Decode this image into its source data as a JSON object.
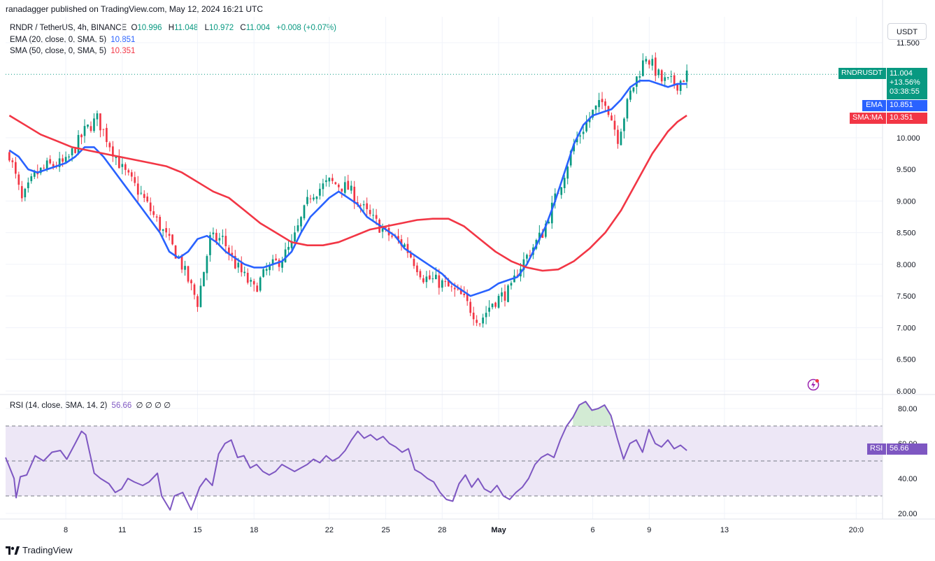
{
  "header": {
    "publisher_line": "ranadagger published on TradingView.com, May 12, 2024 16:21 UTC"
  },
  "legend": {
    "main": {
      "symbol": "RNDR / TetherUS, 4h, BINANCE",
      "o_label": "O",
      "o": "10.996",
      "h_label": "H",
      "h": "11.048",
      "l_label": "L",
      "l": "10.972",
      "c_label": "C",
      "c": "11.004",
      "change": "+0.008 (+0.07%)"
    },
    "ema": {
      "text": "EMA (20, close, 0, SMA, 5)",
      "value": "10.851"
    },
    "sma": {
      "text": "SMA (50, close, 0, SMA, 5)",
      "value": "10.351"
    },
    "rsi": {
      "text": "RSI (14, close, SMA, 14, 2)",
      "value": "56.66",
      "empties": "∅ ∅ ∅ ∅"
    }
  },
  "currency_button": "USDT",
  "price_labels": {
    "symbol_tag": "RNDRUSDT",
    "last_price": "11.004",
    "change_pct": "+13.56%",
    "countdown": "03:38:55",
    "ema_tag": "EMA",
    "ema_val": "10.851",
    "sma_tag": "SMA:MA",
    "sma_val": "10.351",
    "rsi_tag": "RSI",
    "rsi_val": "56.66"
  },
  "colors": {
    "up": "#089981",
    "down": "#f23645",
    "ema": "#2962ff",
    "sma": "#f23645",
    "rsi": "#7e57c2",
    "rsi_band": "#ede7f6",
    "overbought_fill": "#c8e6c9",
    "grid": "#f0f3fa",
    "axis_text": "#131722"
  },
  "footer": {
    "brand": "TradingView"
  },
  "chart_data": [
    {
      "type": "candlestick",
      "title": "RNDR / TetherUS, 4h, BINANCE",
      "ylim": [
        6.0,
        11.6
      ],
      "y_ticks": [
        "6.000",
        "6.500",
        "7.000",
        "7.500",
        "8.000",
        "8.500",
        "9.000",
        "9.500",
        "10.000",
        "11.500"
      ],
      "x_ticks": [
        "8",
        "11",
        "15",
        "18",
        "22",
        "25",
        "28",
        "May",
        "6",
        "9",
        "13",
        "20:0"
      ],
      "x_tick_day_index": [
        3,
        6,
        10,
        13,
        17,
        20,
        23,
        26,
        31,
        34,
        38,
        45
      ],
      "day_range": [
        -0.2,
        46.4
      ],
      "candles_per_day": 6,
      "candle_count": 190,
      "close_path": [
        [
          0,
          9.75
        ],
        [
          4,
          9.0
        ],
        [
          8,
          9.4
        ],
        [
          12,
          9.55
        ],
        [
          18,
          9.6
        ],
        [
          24,
          10.1
        ],
        [
          28,
          10.3
        ],
        [
          31,
          10.0
        ],
        [
          36,
          9.5
        ],
        [
          42,
          9.1
        ],
        [
          48,
          8.6
        ],
        [
          54,
          8.1
        ],
        [
          60,
          7.4
        ],
        [
          64,
          8.4
        ],
        [
          68,
          8.4
        ],
        [
          72,
          8.0
        ],
        [
          78,
          7.6
        ],
        [
          82,
          7.9
        ],
        [
          87,
          8.1
        ],
        [
          90,
          8.3
        ],
        [
          96,
          9.1
        ],
        [
          102,
          9.3
        ],
        [
          108,
          9.2
        ],
        [
          114,
          8.8
        ],
        [
          120,
          8.5
        ],
        [
          126,
          8.3
        ],
        [
          132,
          7.8
        ],
        [
          138,
          7.7
        ],
        [
          144,
          7.5
        ],
        [
          150,
          7.1
        ],
        [
          154,
          7.4
        ],
        [
          160,
          7.6
        ],
        [
          162,
          7.9
        ],
        [
          170,
          8.5
        ],
        [
          176,
          9.3
        ],
        [
          180,
          9.9
        ],
        [
          186,
          10.4
        ],
        [
          190,
          10.6
        ],
        [
          194,
          10.0
        ],
        [
          198,
          10.7
        ],
        [
          203,
          11.3
        ],
        [
          208,
          10.9
        ],
        [
          213,
          10.85
        ],
        [
          216,
          11.0
        ]
      ],
      "series": [
        {
          "name": "EMA",
          "values": [
            [
              0,
              9.8
            ],
            [
              3,
              9.7
            ],
            [
              6,
              9.5
            ],
            [
              9,
              9.45
            ],
            [
              12,
              9.5
            ],
            [
              15,
              9.55
            ],
            [
              18,
              9.6
            ],
            [
              21,
              9.7
            ],
            [
              24,
              9.85
            ],
            [
              27,
              9.85
            ],
            [
              30,
              9.7
            ],
            [
              33,
              9.5
            ],
            [
              36,
              9.3
            ],
            [
              39,
              9.1
            ],
            [
              42,
              8.9
            ],
            [
              45,
              8.7
            ],
            [
              48,
              8.5
            ],
            [
              51,
              8.2
            ],
            [
              54,
              8.1
            ],
            [
              57,
              8.2
            ],
            [
              60,
              8.4
            ],
            [
              63,
              8.45
            ],
            [
              66,
              8.35
            ],
            [
              69,
              8.2
            ],
            [
              72,
              8.1
            ],
            [
              75,
              8.0
            ],
            [
              78,
              7.95
            ],
            [
              81,
              7.95
            ],
            [
              84,
              8.0
            ],
            [
              87,
              8.05
            ],
            [
              90,
              8.2
            ],
            [
              93,
              8.5
            ],
            [
              96,
              8.75
            ],
            [
              99,
              8.9
            ],
            [
              102,
              9.05
            ],
            [
              105,
              9.15
            ],
            [
              108,
              9.05
            ],
            [
              111,
              8.95
            ],
            [
              114,
              8.75
            ],
            [
              117,
              8.65
            ],
            [
              120,
              8.55
            ],
            [
              123,
              8.45
            ],
            [
              126,
              8.25
            ],
            [
              129,
              8.15
            ],
            [
              132,
              8.05
            ],
            [
              135,
              7.95
            ],
            [
              138,
              7.85
            ],
            [
              141,
              7.7
            ],
            [
              144,
              7.6
            ],
            [
              147,
              7.5
            ],
            [
              150,
              7.55
            ],
            [
              153,
              7.6
            ],
            [
              156,
              7.7
            ],
            [
              159,
              7.75
            ],
            [
              162,
              7.8
            ],
            [
              165,
              8.0
            ],
            [
              168,
              8.3
            ],
            [
              171,
              8.6
            ],
            [
              174,
              9.0
            ],
            [
              177,
              9.45
            ],
            [
              180,
              9.9
            ],
            [
              183,
              10.2
            ],
            [
              186,
              10.35
            ],
            [
              189,
              10.4
            ],
            [
              192,
              10.45
            ],
            [
              195,
              10.6
            ],
            [
              198,
              10.8
            ],
            [
              201,
              10.9
            ],
            [
              204,
              10.9
            ],
            [
              207,
              10.85
            ],
            [
              210,
              10.8
            ],
            [
              213,
              10.85
            ],
            [
              216,
              10.85
            ]
          ]
        },
        {
          "name": "SMA:MA",
          "values": [
            [
              0,
              10.35
            ],
            [
              5,
              10.2
            ],
            [
              10,
              10.05
            ],
            [
              15,
              9.95
            ],
            [
              20,
              9.85
            ],
            [
              25,
              9.8
            ],
            [
              30,
              9.75
            ],
            [
              35,
              9.7
            ],
            [
              40,
              9.65
            ],
            [
              45,
              9.6
            ],
            [
              50,
              9.55
            ],
            [
              55,
              9.45
            ],
            [
              60,
              9.3
            ],
            [
              65,
              9.15
            ],
            [
              70,
              9.05
            ],
            [
              75,
              8.85
            ],
            [
              80,
              8.65
            ],
            [
              85,
              8.5
            ],
            [
              90,
              8.35
            ],
            [
              95,
              8.3
            ],
            [
              100,
              8.3
            ],
            [
              105,
              8.35
            ],
            [
              110,
              8.45
            ],
            [
              115,
              8.55
            ],
            [
              120,
              8.6
            ],
            [
              125,
              8.65
            ],
            [
              130,
              8.7
            ],
            [
              135,
              8.72
            ],
            [
              140,
              8.72
            ],
            [
              145,
              8.6
            ],
            [
              150,
              8.4
            ],
            [
              155,
              8.2
            ],
            [
              160,
              8.05
            ],
            [
              165,
              7.95
            ],
            [
              170,
              7.9
            ],
            [
              175,
              7.92
            ],
            [
              180,
              8.05
            ],
            [
              185,
              8.25
            ],
            [
              190,
              8.5
            ],
            [
              195,
              8.85
            ],
            [
              200,
              9.3
            ],
            [
              205,
              9.75
            ],
            [
              210,
              10.1
            ],
            [
              213,
              10.25
            ],
            [
              216,
              10.35
            ]
          ]
        }
      ]
    },
    {
      "type": "line",
      "title": "RSI (14, close, SMA, 14, 2)",
      "ylim": [
        17,
        85
      ],
      "y_ticks": [
        "20.00",
        "40.00",
        "60.00",
        "80.00"
      ],
      "levels": [
        70,
        50,
        30
      ],
      "series": [
        {
          "name": "RSI",
          "values": [
            [
              0,
              52
            ],
            [
              4,
              40
            ],
            [
              5,
              29
            ],
            [
              7,
              41
            ],
            [
              10,
              42
            ],
            [
              14,
              53
            ],
            [
              18,
              50
            ],
            [
              22,
              55
            ],
            [
              26,
              56
            ],
            [
              29,
              51
            ],
            [
              33,
              60
            ],
            [
              36,
              67
            ],
            [
              38,
              65
            ],
            [
              42,
              43
            ],
            [
              45,
              40
            ],
            [
              49,
              37
            ],
            [
              52,
              32
            ],
            [
              55,
              34
            ],
            [
              58,
              40
            ],
            [
              61,
              38
            ],
            [
              65,
              36
            ],
            [
              68,
              38
            ],
            [
              72,
              43
            ],
            [
              74,
              30
            ],
            [
              78,
              22
            ],
            [
              80,
              30
            ],
            [
              84,
              32
            ],
            [
              88,
              22
            ],
            [
              92,
              35
            ],
            [
              95,
              40
            ],
            [
              98,
              36
            ],
            [
              101,
              54
            ],
            [
              104,
              60
            ],
            [
              107,
              62
            ],
            [
              110,
              52
            ],
            [
              113,
              53
            ],
            [
              116,
              46
            ],
            [
              119,
              48
            ],
            [
              122,
              44
            ],
            [
              125,
              42
            ],
            [
              128,
              44
            ],
            [
              131,
              48
            ],
            [
              134,
              46
            ],
            [
              137,
              44
            ],
            [
              140,
              46
            ],
            [
              143,
              48
            ],
            [
              146,
              51
            ],
            [
              149,
              49
            ],
            [
              152,
              53
            ],
            [
              155,
              50
            ],
            [
              158,
              52
            ],
            [
              161,
              56
            ],
            [
              164,
              62
            ],
            [
              167,
              67
            ],
            [
              170,
              63
            ],
            [
              173,
              65
            ],
            [
              176,
              62
            ],
            [
              179,
              64
            ],
            [
              182,
              60
            ],
            [
              185,
              58
            ],
            [
              188,
              55
            ],
            [
              191,
              57
            ],
            [
              194,
              45
            ],
            [
              197,
              43
            ],
            [
              200,
              40
            ],
            [
              203,
              38
            ],
            [
              206,
              32
            ],
            [
              209,
              28
            ],
            [
              212,
              27
            ],
            [
              215,
              37
            ],
            [
              218,
              42
            ],
            [
              221,
              35
            ],
            [
              224,
              40
            ],
            [
              227,
              34
            ],
            [
              230,
              32
            ],
            [
              233,
              36
            ],
            [
              236,
              30
            ],
            [
              239,
              28
            ],
            [
              242,
              32
            ],
            [
              245,
              35
            ],
            [
              248,
              40
            ],
            [
              251,
              48
            ],
            [
              254,
              52
            ],
            [
              257,
              54
            ],
            [
              260,
              52
            ],
            [
              263,
              62
            ],
            [
              266,
              70
            ],
            [
              269,
              75
            ],
            [
              272,
              82
            ],
            [
              275,
              84
            ],
            [
              278,
              79
            ],
            [
              281,
              80
            ],
            [
              284,
              82
            ],
            [
              287,
              76
            ],
            [
              290,
              63
            ],
            [
              293,
              51
            ],
            [
              296,
              60
            ],
            [
              299,
              62
            ],
            [
              302,
              55
            ],
            [
              305,
              68
            ],
            [
              308,
              60
            ],
            [
              311,
              58
            ],
            [
              314,
              62
            ],
            [
              317,
              57
            ],
            [
              320,
              59
            ],
            [
              323,
              56
            ]
          ]
        }
      ]
    }
  ]
}
